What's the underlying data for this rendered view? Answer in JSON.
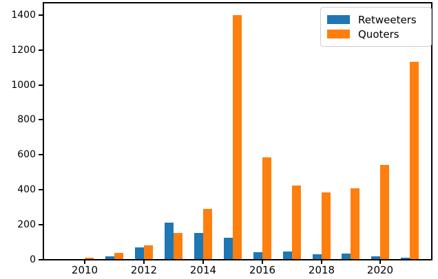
{
  "chart_data": {
    "type": "bar",
    "title": "",
    "xlabel": "",
    "ylabel": "",
    "categories": [
      2010,
      2011,
      2012,
      2013,
      2014,
      2015,
      2016,
      2017,
      2018,
      2019,
      2020,
      2021
    ],
    "series": [
      {
        "name": "Retweeters",
        "color": "#1f77b4",
        "values": [
          1,
          17,
          67,
          207,
          151,
          120,
          38,
          45,
          28,
          30,
          15,
          9
        ]
      },
      {
        "name": "Quoters",
        "color": "#ff7f0e",
        "values": [
          7,
          37,
          80,
          150,
          286,
          1397,
          580,
          420,
          382,
          403,
          540,
          1130
        ]
      }
    ],
    "ylim": [
      0,
      1470
    ],
    "yticks": [
      0,
      200,
      400,
      600,
      800,
      1000,
      1200,
      1400
    ],
    "xticks": [
      2010,
      2012,
      2014,
      2016,
      2018,
      2020
    ],
    "grid": false,
    "legend_position": "upper right",
    "frame_color": "#000000",
    "background_color": "#ffffff"
  },
  "legend": {
    "items": [
      {
        "label": "Retweeters",
        "color": "#1f77b4"
      },
      {
        "label": "Quoters",
        "color": "#ff7f0e"
      }
    ]
  }
}
